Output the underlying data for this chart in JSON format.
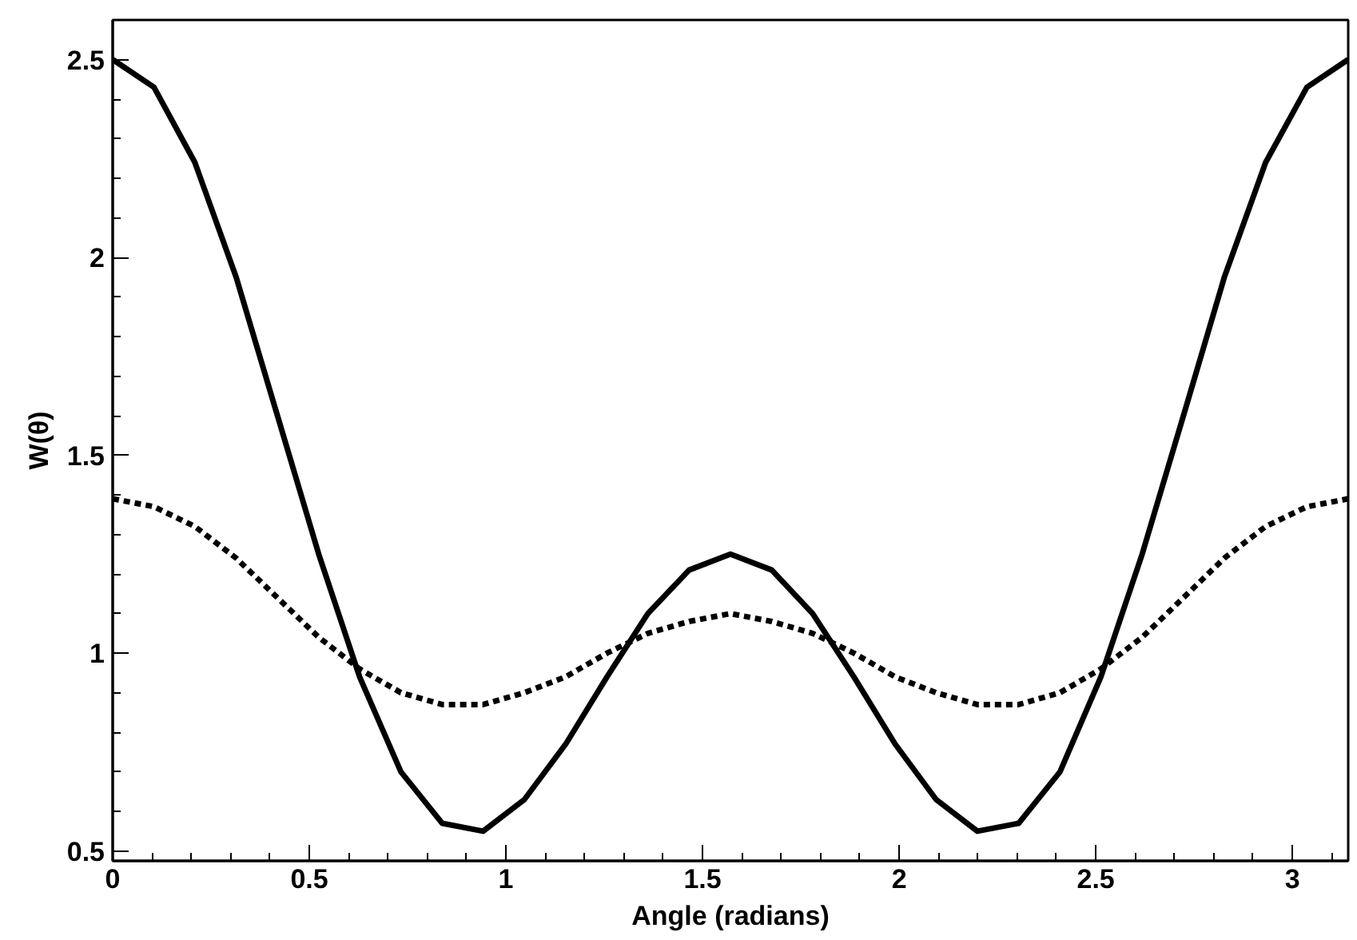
{
  "chart_data": {
    "type": "line",
    "xlabel": "Angle (radians)",
    "ylabel": "W(θ)",
    "x": [
      0,
      0.105,
      0.209,
      0.314,
      0.419,
      0.524,
      0.628,
      0.733,
      0.838,
      0.942,
      1.047,
      1.152,
      1.257,
      1.361,
      1.466,
      1.571,
      1.676,
      1.78,
      1.885,
      1.99,
      2.094,
      2.199,
      2.304,
      2.409,
      2.513,
      2.618,
      2.723,
      2.827,
      2.932,
      3.037,
      3.142
    ],
    "series": [
      {
        "color": "#000000",
        "line_style": "solid",
        "values": [
          2.5,
          2.43,
          2.24,
          1.95,
          1.6,
          1.25,
          0.94,
          0.7,
          0.57,
          0.55,
          0.63,
          0.77,
          0.94,
          1.1,
          1.21,
          1.25,
          1.21,
          1.1,
          0.94,
          0.77,
          0.63,
          0.55,
          0.57,
          0.7,
          0.94,
          1.25,
          1.6,
          1.95,
          2.24,
          2.43,
          2.5
        ]
      },
      {
        "color": "#000000",
        "line_style": "dashed",
        "values": [
          1.39,
          1.37,
          1.32,
          1.24,
          1.14,
          1.04,
          0.96,
          0.9,
          0.87,
          0.87,
          0.9,
          0.94,
          1.0,
          1.05,
          1.08,
          1.1,
          1.08,
          1.05,
          1.0,
          0.94,
          0.9,
          0.87,
          0.87,
          0.9,
          0.96,
          1.04,
          1.14,
          1.24,
          1.32,
          1.37,
          1.39
        ]
      }
    ],
    "xlim": [
      0,
      3.142
    ],
    "ylim": [
      0.475,
      2.6
    ],
    "xticks": [
      0,
      0.5,
      1,
      1.5,
      2,
      2.5,
      3
    ],
    "yticks": [
      0.5,
      1,
      1.5,
      2,
      2.5
    ],
    "grid": false,
    "marker": "none"
  }
}
